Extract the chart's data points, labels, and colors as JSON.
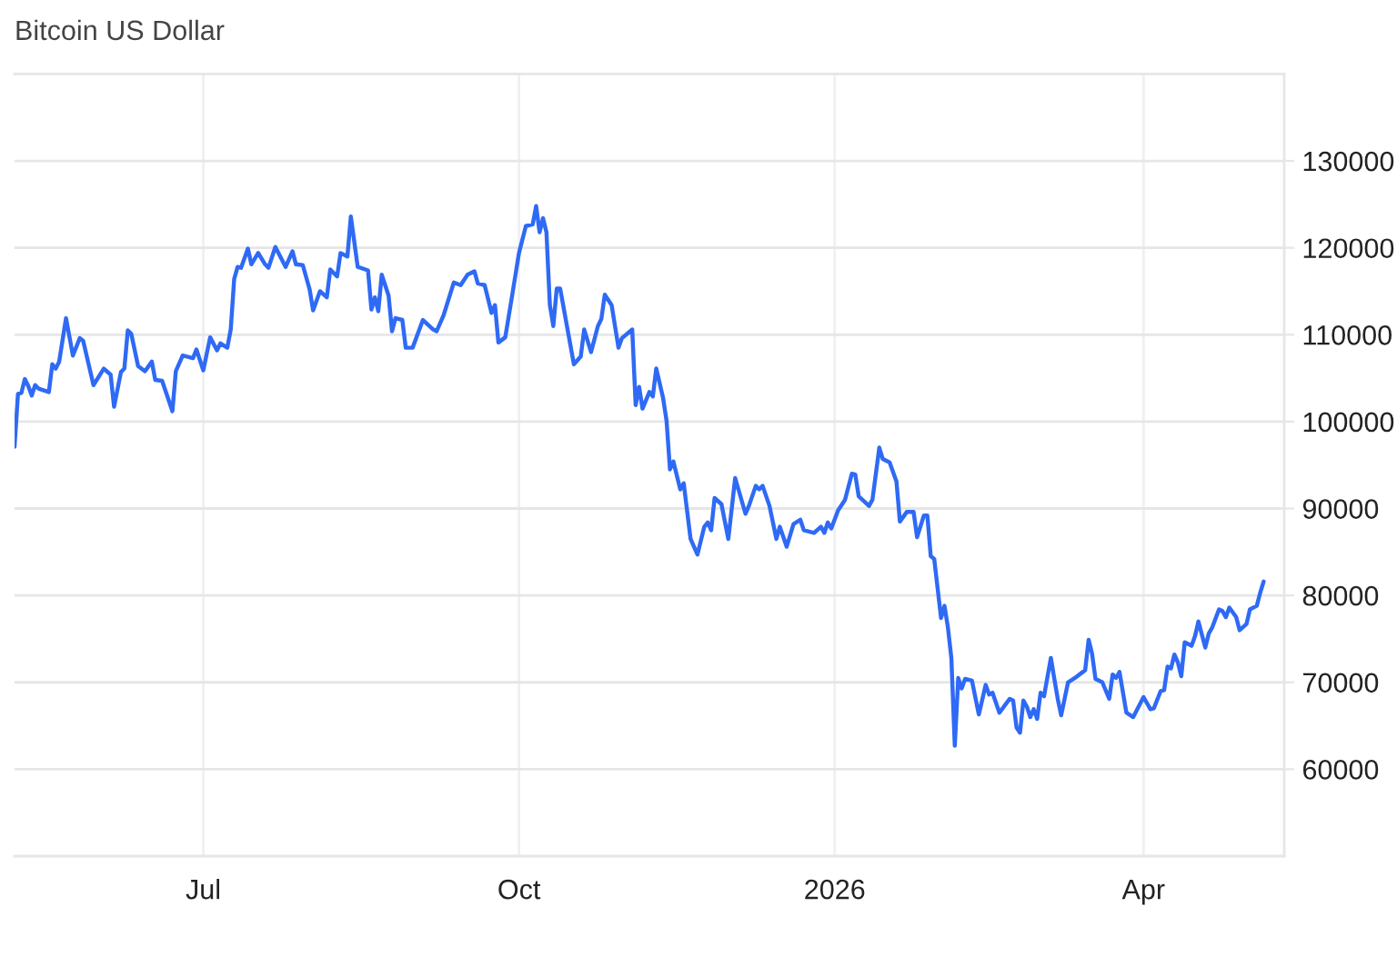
{
  "chart_data": {
    "type": "line",
    "title": "Bitcoin US Dollar",
    "x": [
      "2025-05-07",
      "2025-05-08",
      "2025-05-09",
      "2025-05-10",
      "2025-05-11",
      "2025-05-12",
      "2025-05-13",
      "2025-05-14",
      "2025-05-17",
      "2025-05-18",
      "2025-05-19",
      "2025-05-20",
      "2025-05-22",
      "2025-05-24",
      "2025-05-26",
      "2025-05-27",
      "2025-05-30",
      "2025-06-02",
      "2025-06-04",
      "2025-06-05",
      "2025-06-07",
      "2025-06-08",
      "2025-06-09",
      "2025-06-10",
      "2025-06-12",
      "2025-06-14",
      "2025-06-16",
      "2025-06-17",
      "2025-06-19",
      "2025-06-22",
      "2025-06-23",
      "2025-06-25",
      "2025-06-28",
      "2025-06-29",
      "2025-07-01",
      "2025-07-03",
      "2025-07-05",
      "2025-07-06",
      "2025-07-08",
      "2025-07-09",
      "2025-07-10",
      "2025-07-11",
      "2025-07-12",
      "2025-07-14",
      "2025-07-15",
      "2025-07-17",
      "2025-07-19",
      "2025-07-20",
      "2025-07-22",
      "2025-07-25",
      "2025-07-27",
      "2025-07-28",
      "2025-07-30",
      "2025-08-01",
      "2025-08-02",
      "2025-08-04",
      "2025-08-06",
      "2025-08-07",
      "2025-08-09",
      "2025-08-10",
      "2025-08-12",
      "2025-08-13",
      "2025-08-15",
      "2025-08-18",
      "2025-08-19",
      "2025-08-20",
      "2025-08-21",
      "2025-08-22",
      "2025-08-24",
      "2025-08-25",
      "2025-08-26",
      "2025-08-28",
      "2025-08-29",
      "2025-08-31",
      "2025-09-03",
      "2025-09-06",
      "2025-09-07",
      "2025-09-09",
      "2025-09-12",
      "2025-09-14",
      "2025-09-16",
      "2025-09-18",
      "2025-09-19",
      "2025-09-21",
      "2025-09-23",
      "2025-09-24",
      "2025-09-25",
      "2025-09-27",
      "2025-09-29",
      "2025-10-01",
      "2025-10-03",
      "2025-10-05",
      "2025-10-06",
      "2025-10-07",
      "2025-10-08",
      "2025-10-09",
      "2025-10-10",
      "2025-10-11",
      "2025-10-12",
      "2025-10-13",
      "2025-10-17",
      "2025-10-19",
      "2025-10-20",
      "2025-10-22",
      "2025-10-24",
      "2025-10-25",
      "2025-10-26",
      "2025-10-28",
      "2025-10-30",
      "2025-10-31",
      "2025-11-03",
      "2025-11-04",
      "2025-11-05",
      "2025-11-06",
      "2025-11-08",
      "2025-11-09",
      "2025-11-10",
      "2025-11-12",
      "2025-11-13",
      "2025-11-14",
      "2025-11-15",
      "2025-11-17",
      "2025-11-18",
      "2025-11-20",
      "2025-11-22",
      "2025-11-24",
      "2025-11-25",
      "2025-11-26",
      "2025-11-27",
      "2025-11-29",
      "2025-12-01",
      "2025-12-03",
      "2025-12-06",
      "2025-12-07",
      "2025-12-09",
      "2025-12-10",
      "2025-12-11",
      "2025-12-13",
      "2025-12-15",
      "2025-12-16",
      "2025-12-18",
      "2025-12-20",
      "2025-12-22",
      "2025-12-23",
      "2025-12-26",
      "2025-12-28",
      "2025-12-29",
      "2025-12-30",
      "2025-12-31",
      "2026-01-02",
      "2026-01-04",
      "2026-01-06",
      "2026-01-07",
      "2026-01-08",
      "2026-01-11",
      "2026-01-12",
      "2026-01-14",
      "2026-01-15",
      "2026-01-17",
      "2026-01-19",
      "2026-01-20",
      "2026-01-22",
      "2026-01-24",
      "2026-01-25",
      "2026-01-27",
      "2026-01-28",
      "2026-01-29",
      "2026-01-30",
      "2026-02-01",
      "2026-02-02",
      "2026-02-03",
      "2026-02-04",
      "2026-02-05",
      "2026-02-06",
      "2026-02-07",
      "2026-02-08",
      "2026-02-10",
      "2026-02-12",
      "2026-02-14",
      "2026-02-15",
      "2026-02-16",
      "2026-02-18",
      "2026-02-21",
      "2026-02-22",
      "2026-02-23",
      "2026-02-24",
      "2026-02-25",
      "2026-02-26",
      "2026-02-27",
      "2026-02-28",
      "2026-03-01",
      "2026-03-02",
      "2026-03-03",
      "2026-03-05",
      "2026-03-06",
      "2026-03-07",
      "2026-03-08",
      "2026-03-10",
      "2026-03-12",
      "2026-03-15",
      "2026-03-16",
      "2026-03-17",
      "2026-03-18",
      "2026-03-20",
      "2026-03-22",
      "2026-03-23",
      "2026-03-24",
      "2026-03-25",
      "2026-03-27",
      "2026-03-29",
      "2026-04-01",
      "2026-04-03",
      "2026-04-04",
      "2026-04-06",
      "2026-04-07",
      "2026-04-08",
      "2026-04-09",
      "2026-04-10",
      "2026-04-11",
      "2026-04-12",
      "2026-04-13",
      "2026-04-15",
      "2026-04-16",
      "2026-04-17",
      "2026-04-19",
      "2026-04-20",
      "2026-04-21",
      "2026-04-23",
      "2026-04-24",
      "2026-04-25",
      "2026-04-26",
      "2026-04-28",
      "2026-04-29",
      "2026-05-01",
      "2026-05-02",
      "2026-05-04",
      "2026-05-05",
      "2026-05-06"
    ],
    "values": [
      97100,
      103200,
      103300,
      104900,
      104100,
      103000,
      104200,
      103800,
      103400,
      106600,
      106100,
      106900,
      111900,
      107600,
      109600,
      109300,
      104200,
      106100,
      105400,
      101700,
      105700,
      106100,
      110500,
      110100,
      106400,
      105800,
      106900,
      104800,
      104700,
      101200,
      105800,
      107600,
      107300,
      108300,
      105900,
      109700,
      108200,
      109000,
      108500,
      110600,
      116400,
      117800,
      117700,
      119900,
      118100,
      119400,
      118100,
      117700,
      120100,
      117800,
      119600,
      118100,
      118000,
      115200,
      112800,
      115000,
      114300,
      117500,
      116700,
      119400,
      119000,
      123600,
      117800,
      117400,
      112900,
      114300,
      112700,
      116900,
      114500,
      110400,
      111900,
      111700,
      108500,
      108500,
      111700,
      110600,
      110400,
      112200,
      116000,
      115700,
      116900,
      117300,
      115900,
      115700,
      112500,
      113400,
      109100,
      109700,
      114500,
      119400,
      122500,
      122700,
      124800,
      121800,
      123400,
      121800,
      113400,
      111000,
      115300,
      115300,
      106600,
      107500,
      110600,
      108000,
      111000,
      111800,
      114600,
      113400,
      108500,
      109600,
      110600,
      101900,
      104000,
      101500,
      103400,
      102900,
      106100,
      102700,
      100100,
      94500,
      95400,
      92200,
      92900,
      86500,
      84700,
      87900,
      88400,
      87500,
      91200,
      90500,
      86500,
      93500,
      89400,
      90300,
      92600,
      92200,
      92600,
      90300,
      86500,
      87900,
      85600,
      88200,
      88700,
      87500,
      87200,
      87900,
      87200,
      88400,
      87700,
      89800,
      91000,
      94000,
      93900,
      91400,
      90300,
      91000,
      97000,
      95700,
      95300,
      93100,
      88500,
      89600,
      89600,
      86700,
      89200,
      89200,
      84500,
      84200,
      77400,
      78800,
      76300,
      72800,
      62700,
      70500,
      69300,
      70400,
      70200,
      66300,
      69700,
      68600,
      68800,
      66500,
      68100,
      67900,
      64800,
      64200,
      67900,
      67200,
      66000,
      66900,
      65800,
      68800,
      68400,
      72800,
      70400,
      68100,
      66200,
      70000,
      70500,
      71400,
      74900,
      73300,
      70400,
      70000,
      68100,
      70900,
      70500,
      71200,
      66500,
      66000,
      68300,
      66900,
      67000,
      69000,
      69100,
      71800,
      71600,
      73200,
      72300,
      70700,
      74600,
      74200,
      75300,
      77000,
      74000,
      75600,
      76300,
      78400,
      78200,
      77500,
      78600,
      77500,
      76000,
      76700,
      78400,
      78800,
      80300,
      81600
    ],
    "color": "#2f6af5",
    "line_style": "solid",
    "xlim": [
      "2025-05-07",
      "2026-05-12"
    ],
    "xticks": [
      {
        "value": "2025-07-01",
        "label": "Jul"
      },
      {
        "value": "2025-10-01",
        "label": "Oct"
      },
      {
        "value": "2026-01-01",
        "label": "2026"
      },
      {
        "value": "2026-04-01",
        "label": "Apr"
      }
    ],
    "ylim": [
      50000,
      140000
    ],
    "yticks": [
      60000,
      70000,
      80000,
      90000,
      100000,
      110000,
      120000,
      130000
    ],
    "grid": true
  }
}
